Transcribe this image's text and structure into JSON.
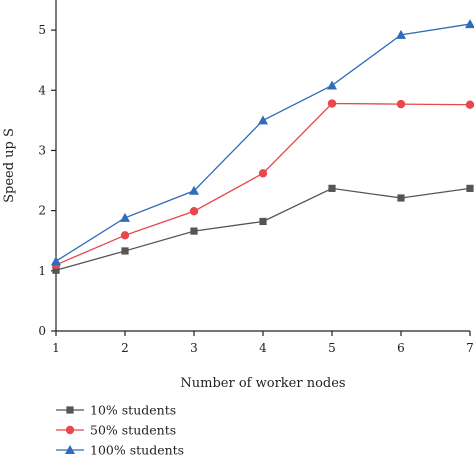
{
  "chart_data": {
    "type": "line",
    "title": "",
    "xlabel": "Number of worker nodes",
    "ylabel": "Speed up S",
    "xlim": [
      1,
      7
    ],
    "ylim": [
      0,
      5.5
    ],
    "x_ticks": [
      1,
      2,
      3,
      4,
      5,
      6,
      7
    ],
    "y_ticks": [
      0,
      1,
      2,
      3,
      4,
      5
    ],
    "grid": false,
    "legend_position": "bottom-left",
    "x": [
      1,
      2,
      3,
      4,
      5,
      6,
      7
    ],
    "series": [
      {
        "name": "10% students",
        "marker": "square",
        "color": "#555555",
        "values": [
          1.01,
          1.33,
          1.66,
          1.82,
          2.37,
          2.21,
          2.37
        ]
      },
      {
        "name": "50% students",
        "marker": "circle",
        "color": "#e8474c",
        "values": [
          1.1,
          1.59,
          1.99,
          2.62,
          3.78,
          3.77,
          3.76
        ]
      },
      {
        "name": "100% students",
        "marker": "triangle",
        "color": "#2f6db8",
        "values": [
          1.16,
          1.88,
          2.33,
          3.5,
          4.08,
          4.92,
          5.1
        ]
      }
    ]
  }
}
